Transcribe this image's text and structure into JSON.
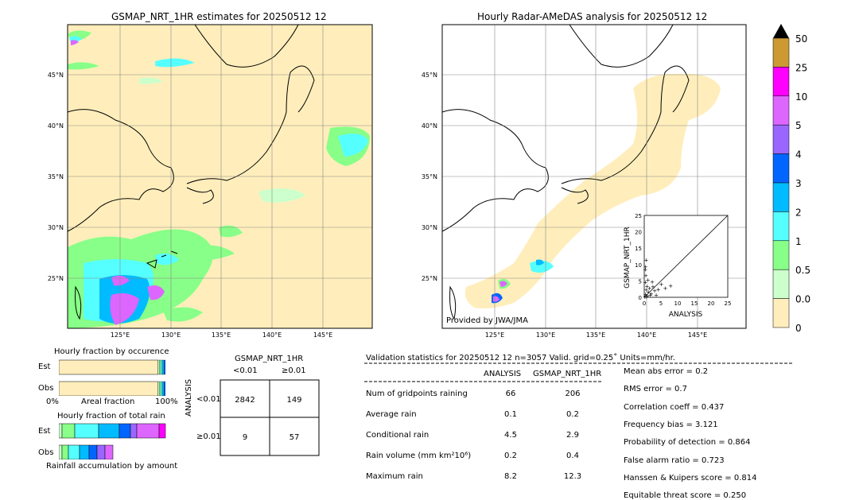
{
  "map_left": {
    "title": "GSMAP_NRT_1HR estimates for 20250512 12",
    "lat_labels": [
      "45°N",
      "40°N",
      "35°N",
      "30°N",
      "25°N"
    ],
    "lon_labels": [
      "125°E",
      "130°E",
      "135°E",
      "140°E",
      "145°E"
    ]
  },
  "map_right": {
    "title": "Hourly Radar-AMeDAS analysis for 20250512 12",
    "lat_labels": [
      "45°N",
      "40°N",
      "35°N",
      "30°N",
      "25°N"
    ],
    "lon_labels": [
      "125°E",
      "130°E",
      "135°E",
      "140°E",
      "145°E"
    ],
    "credit": "Provided by JWA/JMA"
  },
  "inset_scatter": {
    "ylabel": "GSMAP_NRT_1HR",
    "xlabel": "ANALYSIS",
    "ticks": [
      "0",
      "5",
      "10",
      "15",
      "20",
      "25"
    ]
  },
  "colorbar": {
    "labels": [
      "50",
      "25",
      "10",
      "5",
      "4",
      "3",
      "2",
      "1",
      "0.5",
      "0.01",
      "0"
    ],
    "colors": [
      "#cc9933",
      "#ff00ff",
      "#dd66ff",
      "#9966ff",
      "#0066ff",
      "#00bbff",
      "#55ffff",
      "#88ff88",
      "#ccffcc",
      "#ffeebb"
    ]
  },
  "fraction_occurrence": {
    "title": "Hourly fraction by occurence",
    "rows": [
      "Est",
      "Obs"
    ],
    "xlabel_left": "0%",
    "xlabel_mid": "Areal fraction",
    "xlabel_right": "100%"
  },
  "fraction_total": {
    "title": "Hourly fraction of total rain",
    "rows": [
      "Est",
      "Obs"
    ],
    "xlabel": "Rainfall accumulation by amount"
  },
  "contingency": {
    "col_title": "GSMAP_NRT_1HR",
    "col_labels": [
      "<0.01",
      "≥0.01"
    ],
    "row_title": "ANALYSIS",
    "row_labels": [
      "<0.01",
      "≥0.01"
    ],
    "cells": [
      [
        "2842",
        "149"
      ],
      [
        "9",
        "57"
      ]
    ]
  },
  "validation": {
    "header": "Validation statistics for 20250512 12  n=3057 Valid. grid=0.25˚ Units=mm/hr.",
    "col_analysis": "ANALYSIS",
    "col_gsmap": "GSMAP_NRT_1HR",
    "rows": [
      {
        "label": "Num of gridpoints raining",
        "analysis": "66",
        "gsmap": "206"
      },
      {
        "label": "Average rain",
        "analysis": "0.1",
        "gsmap": "0.2"
      },
      {
        "label": "Conditional rain",
        "analysis": "4.5",
        "gsmap": "2.9"
      },
      {
        "label": "Rain volume (mm km²10⁶)",
        "analysis": "0.2",
        "gsmap": "0.4"
      },
      {
        "label": "Maximum rain",
        "analysis": "8.2",
        "gsmap": "12.3"
      }
    ],
    "scores": [
      "Mean abs error =    0.2",
      "RMS error =    0.7",
      "Correlation coeff =  0.437",
      "Frequency bias =  3.121",
      "Probability of detection =  0.864",
      "False alarm ratio =  0.723",
      "Hanssen & Kuipers score =  0.814",
      "Equitable threat score =  0.250"
    ]
  },
  "chart_data": [
    {
      "type": "bar",
      "title": "Hourly fraction by occurence",
      "categories": [
        "Est",
        "Obs"
      ],
      "xlabel": "Areal fraction",
      "segment_colors": [
        "#ffeebb",
        "#ccffcc",
        "#88ff88",
        "#55ffff",
        "#00bbff",
        "#0066ff",
        "#9966ff",
        "#dd66ff",
        "#ff00ff",
        "#cc9933"
      ],
      "series": [
        {
          "values": [
            0.93,
            0.93
          ]
        }
      ]
    },
    {
      "type": "scatter",
      "xlabel": "ANALYSIS",
      "ylabel": "GSMAP_NRT_1HR",
      "xlim": [
        0,
        25
      ],
      "ylim": [
        0,
        25
      ],
      "diagonal": true,
      "points": [
        [
          0.2,
          0.3
        ],
        [
          0.4,
          1.1
        ],
        [
          0.6,
          2.4
        ],
        [
          0.3,
          4.7
        ],
        [
          0.5,
          6.8
        ],
        [
          0.8,
          3.5
        ],
        [
          1.2,
          1.8
        ],
        [
          0.9,
          0.6
        ],
        [
          1.6,
          2.9
        ],
        [
          2.1,
          1.2
        ],
        [
          2.6,
          3.4
        ],
        [
          3.1,
          2.2
        ],
        [
          0.3,
          8.6
        ],
        [
          0.6,
          11.5
        ],
        [
          4.2,
          2.6
        ],
        [
          5.1,
          4.1
        ],
        [
          6.3,
          2.9
        ],
        [
          7.9,
          3.6
        ],
        [
          1.1,
          5.5
        ],
        [
          0.4,
          9.5
        ],
        [
          0.7,
          0.2
        ],
        [
          1.8,
          0.9
        ],
        [
          2.4,
          4.8
        ],
        [
          3.6,
          0.8
        ]
      ]
    }
  ]
}
